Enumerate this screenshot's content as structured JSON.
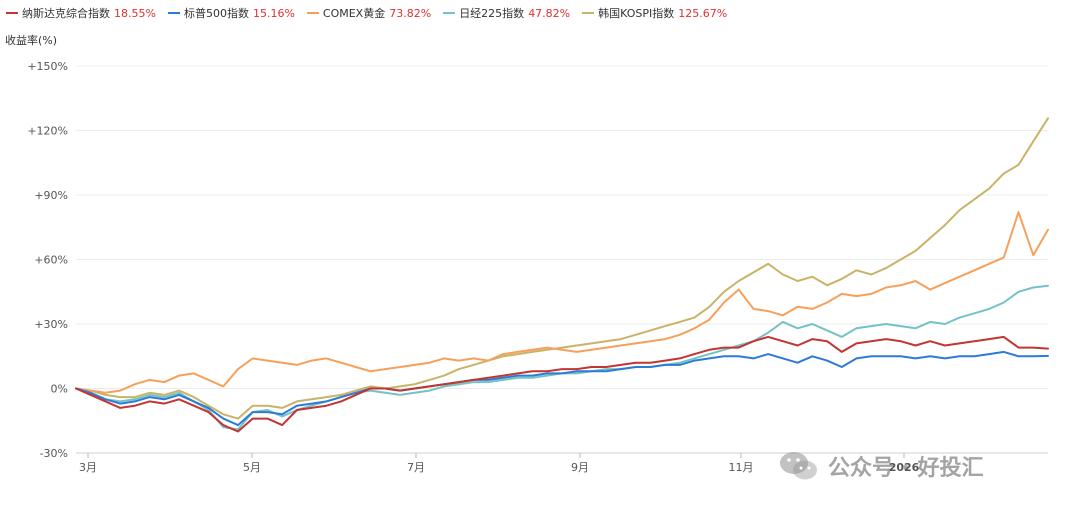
{
  "chart_data": {
    "type": "line",
    "ylabel": "收益率(%)",
    "ylim": [
      -30,
      150
    ],
    "yticks": [
      "+150%",
      "+120%",
      "+90%",
      "+60%",
      "+30%",
      "0%",
      "-30%"
    ],
    "ytick_values": [
      150,
      120,
      90,
      60,
      30,
      0,
      -30
    ],
    "xticks": [
      "3月",
      "5月",
      "7月",
      "9月",
      "11月",
      "2026"
    ],
    "grid": true,
    "legend_position": "top-left",
    "series": [
      {
        "name": "纳斯达克综合指数",
        "final": "18.55%",
        "color": "#c23531",
        "values": [
          0,
          -3,
          -6,
          -9,
          -8,
          -6,
          -7,
          -5,
          -8,
          -11,
          -17,
          -20,
          -14,
          -14,
          -17,
          -10,
          -9,
          -8,
          -6,
          -3,
          0,
          0,
          -1,
          0,
          1,
          2,
          3,
          4,
          5,
          6,
          7,
          8,
          8,
          9,
          9,
          10,
          10,
          11,
          12,
          12,
          13,
          14,
          16,
          18,
          19,
          19,
          22,
          24,
          22,
          20,
          23,
          22,
          17,
          21,
          22,
          23,
          22,
          20,
          22,
          20,
          21,
          22,
          23,
          24,
          19,
          19,
          18.55
        ]
      },
      {
        "name": "标普500指数",
        "final": "15.16%",
        "color": "#2d7bd6",
        "values": [
          0,
          -2,
          -5,
          -7,
          -6,
          -4,
          -5,
          -3,
          -6,
          -9,
          -14,
          -17,
          -11,
          -11,
          -12,
          -8,
          -7,
          -6,
          -4,
          -2,
          0,
          0,
          -1,
          0,
          1,
          2,
          3,
          4,
          4,
          5,
          6,
          6,
          7,
          7,
          8,
          8,
          8,
          9,
          10,
          10,
          11,
          11,
          13,
          14,
          15,
          15,
          14,
          16,
          14,
          12,
          15,
          13,
          10,
          14,
          15,
          15,
          15,
          14,
          15,
          14,
          15,
          15,
          16,
          17,
          15,
          15,
          15.16
        ]
      },
      {
        "name": "COMEX黄金",
        "final": "73.82%",
        "color": "#f6a05a",
        "values": [
          0,
          -1,
          -2,
          -1,
          2,
          4,
          3,
          6,
          7,
          4,
          1,
          9,
          14,
          13,
          12,
          11,
          13,
          14,
          12,
          10,
          8,
          9,
          10,
          11,
          12,
          14,
          13,
          14,
          13,
          16,
          17,
          18,
          19,
          18,
          17,
          18,
          19,
          20,
          21,
          22,
          23,
          25,
          28,
          32,
          40,
          46,
          37,
          36,
          34,
          38,
          37,
          40,
          44,
          43,
          44,
          47,
          48,
          50,
          46,
          49,
          52,
          55,
          58,
          61,
          82,
          62,
          73.82
        ]
      },
      {
        "name": "日经225指数",
        "final": "47.82%",
        "color": "#74c3c4",
        "values": [
          0,
          -2,
          -5,
          -6,
          -5,
          -3,
          -4,
          -2,
          -6,
          -10,
          -18,
          -19,
          -11,
          -10,
          -13,
          -10,
          -8,
          -6,
          -4,
          -2,
          -1,
          -2,
          -3,
          -2,
          -1,
          1,
          2,
          3,
          3,
          4,
          5,
          5,
          6,
          7,
          7,
          8,
          9,
          9,
          10,
          10,
          11,
          12,
          14,
          16,
          18,
          20,
          22,
          26,
          31,
          28,
          30,
          27,
          24,
          28,
          29,
          30,
          29,
          28,
          31,
          30,
          33,
          35,
          37,
          40,
          45,
          47,
          47.82
        ]
      },
      {
        "name": "韩国KOSPI指数",
        "final": "125.67%",
        "color": "#c9b367",
        "values": [
          0,
          -1,
          -3,
          -4,
          -4,
          -2,
          -3,
          -1,
          -4,
          -8,
          -12,
          -14,
          -8,
          -8,
          -9,
          -6,
          -5,
          -4,
          -3,
          -1,
          1,
          0,
          1,
          2,
          4,
          6,
          9,
          11,
          13,
          15,
          16,
          17,
          18,
          19,
          20,
          21,
          22,
          23,
          25,
          27,
          29,
          31,
          33,
          38,
          45,
          50,
          54,
          58,
          53,
          50,
          52,
          48,
          51,
          55,
          53,
          56,
          60,
          64,
          70,
          76,
          83,
          88,
          93,
          100,
          104,
          115,
          125.67
        ]
      }
    ]
  },
  "watermark": {
    "text": "公众号 · 好投汇",
    "icon": "wechat-icon"
  }
}
